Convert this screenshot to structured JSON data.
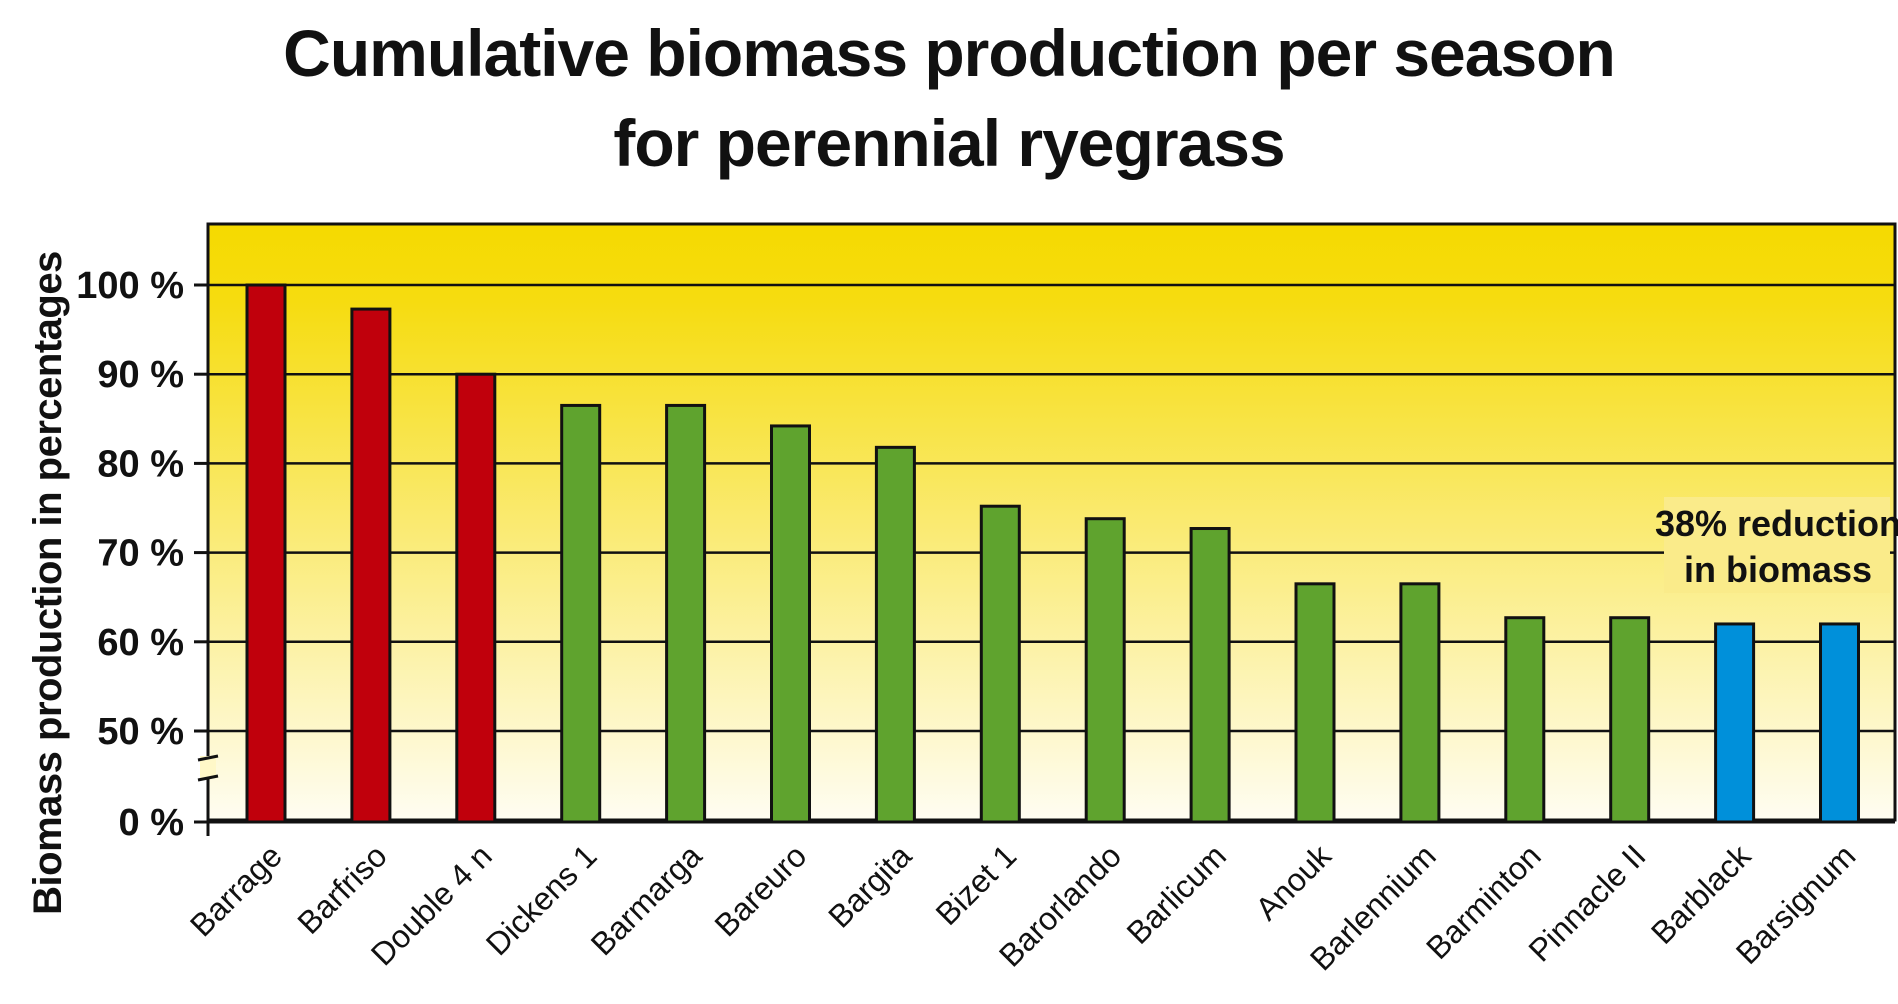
{
  "chart_data": {
    "type": "bar",
    "title_lines": [
      "Cumulative biomass production per season",
      "for perennial ryegrass"
    ],
    "ylabel": "Biomass production in percentages",
    "xlabel": "",
    "yticks": [
      {
        "value": 0,
        "label": "0 %"
      },
      {
        "value": 50,
        "label": "50 %"
      },
      {
        "value": 60,
        "label": "60 %"
      },
      {
        "value": 70,
        "label": "70 %"
      },
      {
        "value": 80,
        "label": "80 %"
      },
      {
        "value": 90,
        "label": "90 %"
      },
      {
        "value": 100,
        "label": "100 %"
      }
    ],
    "gridlines": [
      50,
      60,
      70,
      80,
      90,
      100
    ],
    "axis_break": {
      "from": 0,
      "to": 50
    },
    "ylim": [
      0,
      106
    ],
    "categories": [
      "Barrage",
      "Barfriso",
      "Double 4 n",
      "Dickens 1",
      "Barmarga",
      "Bareuro",
      "Bargita",
      "Bizet 1",
      "Barorlando",
      "Barlicum",
      "Anouk",
      "Barlennium",
      "Barminton",
      "Pinnacle II",
      "Barblack",
      "Barsignum"
    ],
    "values": [
      100,
      97.3,
      90,
      86.5,
      86.5,
      84.2,
      81.8,
      75.2,
      73.8,
      72.7,
      66.5,
      66.5,
      62.7,
      62.7,
      62,
      62
    ],
    "groups": [
      "red",
      "red",
      "red",
      "green",
      "green",
      "green",
      "green",
      "green",
      "green",
      "green",
      "green",
      "green",
      "green",
      "green",
      "blue",
      "blue"
    ],
    "annotation": [
      "38% reduction",
      "in biomass"
    ],
    "grid": true,
    "colors": {
      "red": "#c0000c",
      "green": "#5fa32e",
      "blue": "#0090da",
      "background_top": "#f5da00",
      "background_bottom": "#fffdf2",
      "outline": "#111111"
    }
  }
}
